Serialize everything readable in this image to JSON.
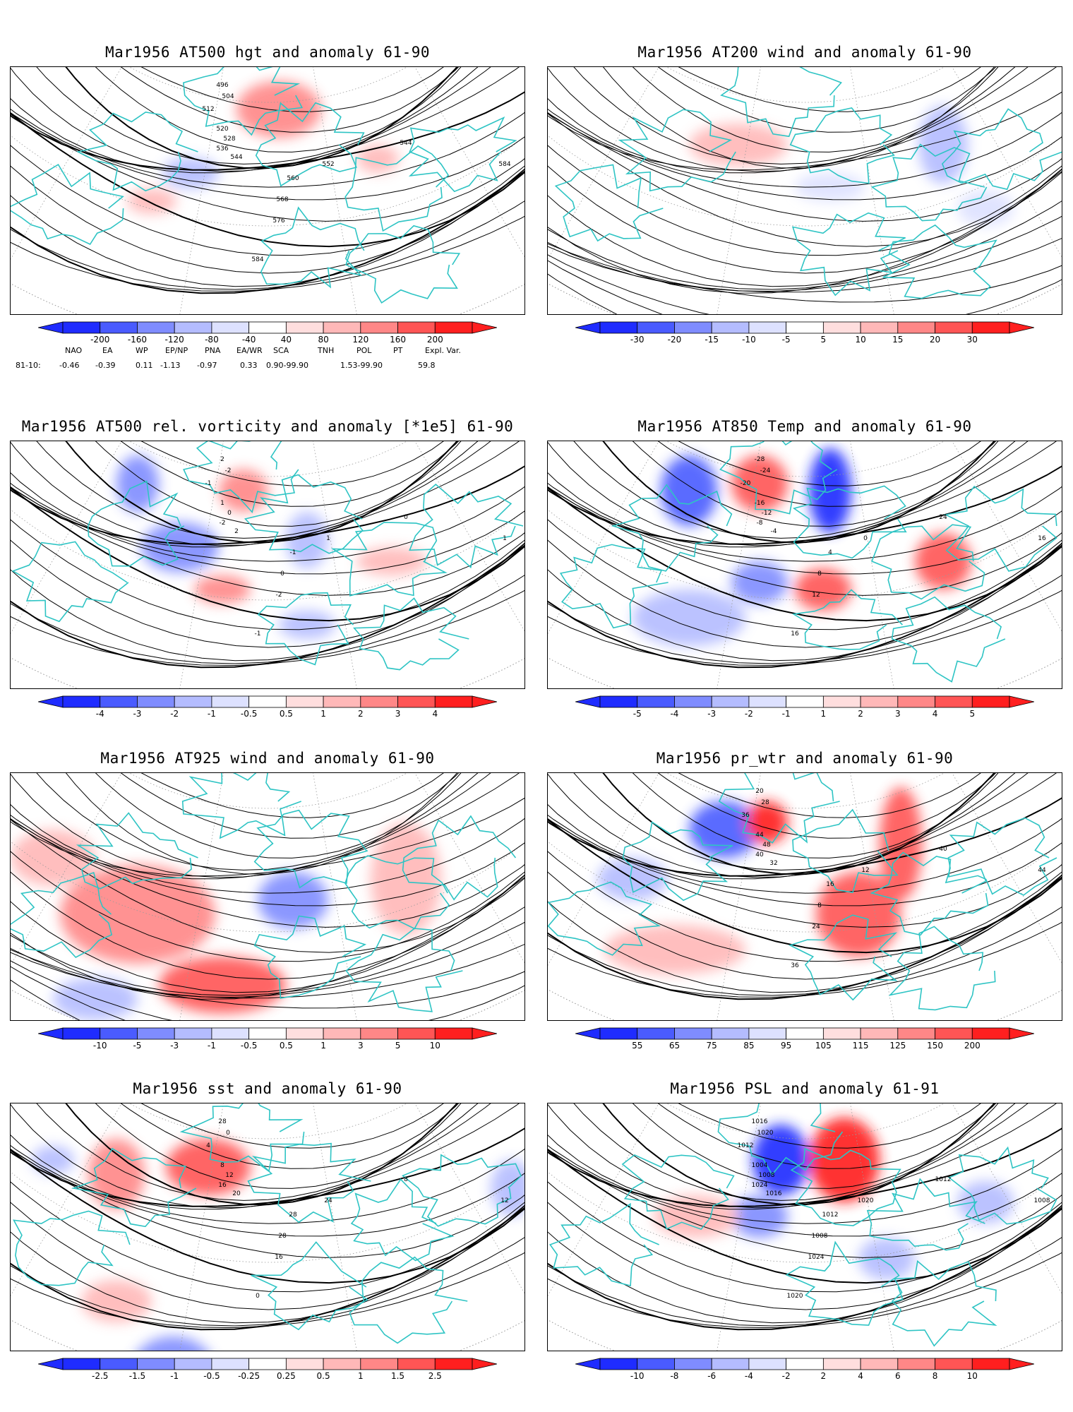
{
  "colors": {
    "coast": "#2ec4c4",
    "contour": "#000000",
    "grid": "#9a9a9a",
    "scale": [
      "#1f2cff",
      "#4a5bff",
      "#7f8cff",
      "#b4bcff",
      "#dde1ff",
      "#ffffff",
      "#ffdede",
      "#ffb8b8",
      "#ff8787",
      "#ff5555",
      "#ff1f1f"
    ]
  },
  "panels": [
    {
      "title": "Mar1956 AT500 hgt and anomaly 61-90",
      "ticks": [
        "-200",
        "-160",
        "-120",
        "-80",
        "-40",
        "40",
        "80",
        "120",
        "160",
        "200"
      ],
      "labels": [
        "496",
        "504",
        "512",
        "520",
        "528",
        "536",
        "544",
        "552",
        "560",
        "568",
        "576",
        "584",
        "584",
        "544",
        "584"
      ],
      "type": "contour"
    },
    {
      "title": "Mar1956 AT200 wind and anomaly 61-90",
      "ticks": [
        "-30",
        "-20",
        "-15",
        "-10",
        "-5",
        "5",
        "10",
        "15",
        "20",
        "30"
      ],
      "labels": [],
      "type": "streamline"
    },
    {
      "title": "Mar1956 AT500 rel. vorticity and anomaly [*1e5] 61-90",
      "ticks": [
        "-4",
        "-3",
        "-2",
        "-1",
        "-0.5",
        "0.5",
        "1",
        "2",
        "3",
        "4"
      ],
      "labels": [
        "2",
        "-2",
        "-1",
        "1",
        "0",
        "-2",
        "2",
        "1",
        "-1",
        "0",
        "-2",
        "-1",
        "2",
        "0",
        "1"
      ],
      "type": "contour"
    },
    {
      "title": "Mar1956 AT850 Temp and anomaly 61-90",
      "ticks": [
        "-5",
        "-4",
        "-3",
        "-2",
        "-1",
        "1",
        "2",
        "3",
        "4",
        "5"
      ],
      "labels": [
        "-28",
        "-24",
        "-20",
        "-16",
        "-12",
        "-8",
        "-4",
        "0",
        "4",
        "8",
        "12",
        "16",
        "20",
        "24",
        "16"
      ],
      "type": "contour"
    },
    {
      "title": "Mar1956 AT925 wind and anomaly 61-90",
      "ticks": [
        "-10",
        "-5",
        "-3",
        "-1",
        "-0.5",
        "0.5",
        "1",
        "3",
        "5",
        "10"
      ],
      "labels": [],
      "type": "streamline"
    },
    {
      "title": "Mar1956 pr_wtr and anomaly 61-90",
      "ticks": [
        "55",
        "65",
        "75",
        "85",
        "95",
        "105",
        "115",
        "125",
        "150",
        "200"
      ],
      "labels": [
        "20",
        "28",
        "36",
        "44",
        "48",
        "40",
        "32",
        "12",
        "16",
        "8",
        "24",
        "36",
        "32",
        "40",
        "44"
      ],
      "type": "contour"
    },
    {
      "title": "Mar1956 sst and anomaly 61-90",
      "ticks": [
        "-2.5",
        "-1.5",
        "-1",
        "-0.5",
        "-0.25",
        "0.25",
        "0.5",
        "1",
        "1.5",
        "2.5"
      ],
      "labels": [
        "28",
        "0",
        "4",
        "8",
        "12",
        "16",
        "20",
        "24",
        "28",
        "28",
        "16",
        "0",
        "4",
        "8",
        "12"
      ],
      "type": "contour"
    },
    {
      "title": "Mar1956 PSL and anomaly 61-91",
      "ticks": [
        "-10",
        "-8",
        "-6",
        "-4",
        "-2",
        "2",
        "4",
        "6",
        "8",
        "10"
      ],
      "labels": [
        "1016",
        "1020",
        "1012",
        "1004",
        "1008",
        "1024",
        "1016",
        "1020",
        "1012",
        "1008",
        "1024",
        "1020",
        "1016",
        "1012",
        "1008"
      ],
      "type": "contour"
    }
  ],
  "index_table": {
    "headers": [
      "NAO",
      "EA",
      "WP",
      "EP/NP",
      "PNA",
      "EA/WR",
      "SCA",
      "TNH",
      "POL",
      "PT",
      "Expl. Var."
    ],
    "row_label": "81-10:",
    "values": [
      "-0.46",
      "-0.39",
      "0.11",
      "-1.13",
      "-0.97",
      "0.33",
      "0.90-99.90",
      "1.53-99.90",
      "59.8"
    ]
  }
}
